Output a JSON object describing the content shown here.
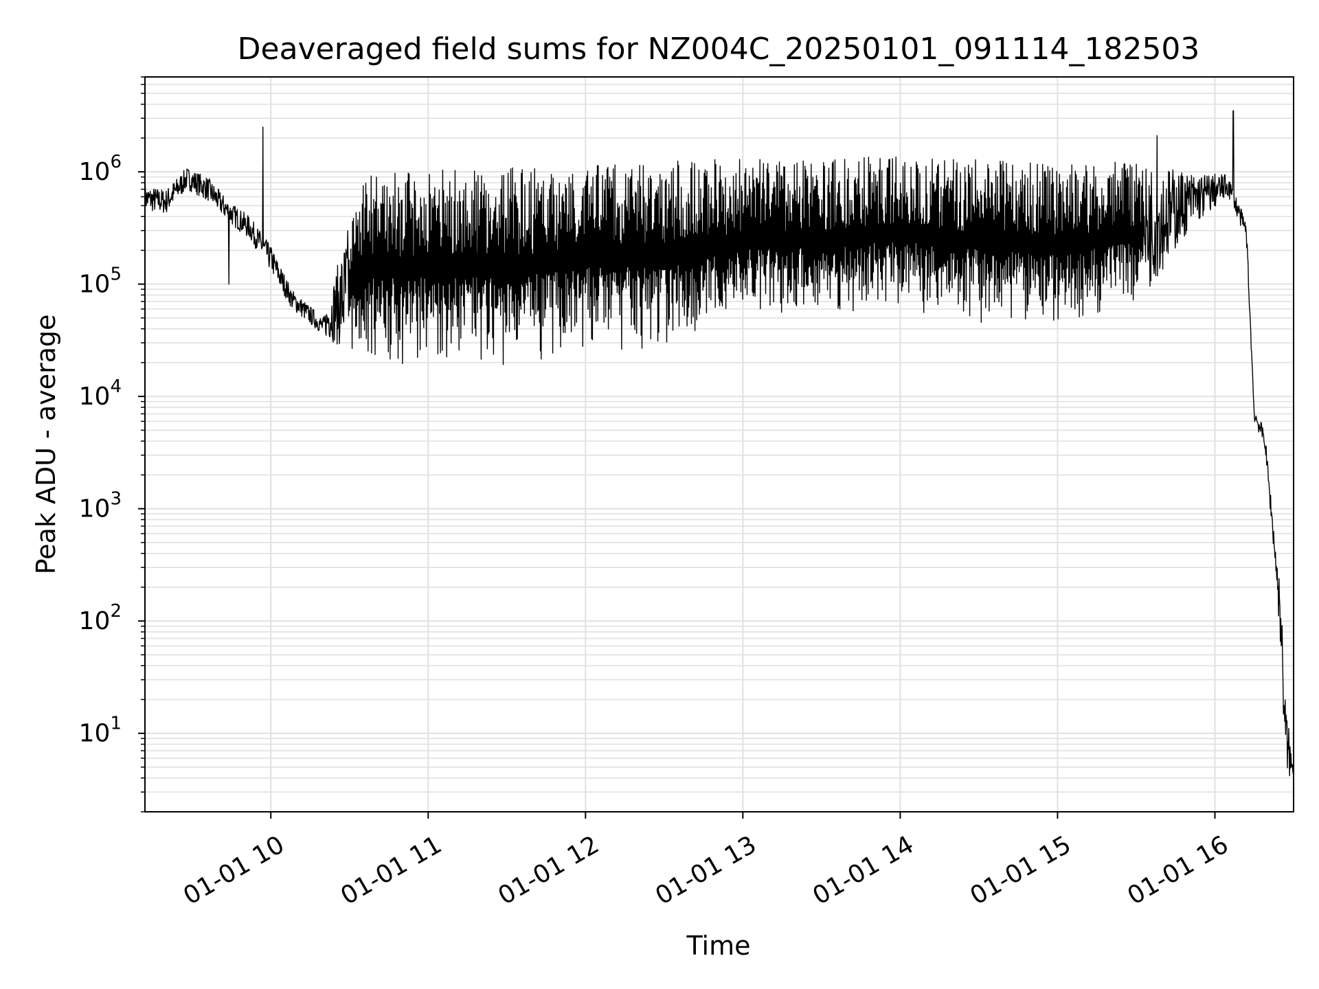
{
  "chart_data": {
    "type": "line",
    "title": "Deaveraged field sums for NZ004C_20250101_091114_182503",
    "xlabel": "Time",
    "ylabel": "Peak ADU - average",
    "y_scale": "log",
    "ylim": [
      2,
      7000000
    ],
    "xlim": [
      "2025-01-01 09:12",
      "2025-01-01 16:30"
    ],
    "x_ticks": [
      {
        "value": "2025-01-01 10:00",
        "label": "01-01 10"
      },
      {
        "value": "2025-01-01 11:00",
        "label": "01-01 11"
      },
      {
        "value": "2025-01-01 12:00",
        "label": "01-01 12"
      },
      {
        "value": "2025-01-01 13:00",
        "label": "01-01 13"
      },
      {
        "value": "2025-01-01 14:00",
        "label": "01-01 14"
      },
      {
        "value": "2025-01-01 15:00",
        "label": "01-01 15"
      },
      {
        "value": "2025-01-01 16:00",
        "label": "01-01 16"
      }
    ],
    "y_ticks": [
      {
        "value": 10,
        "base": "10",
        "exp": "1"
      },
      {
        "value": 100,
        "base": "10",
        "exp": "2"
      },
      {
        "value": 1000,
        "base": "10",
        "exp": "3"
      },
      {
        "value": 10000,
        "base": "10",
        "exp": "4"
      },
      {
        "value": 100000,
        "base": "10",
        "exp": "5"
      },
      {
        "value": 1000000,
        "base": "10",
        "exp": "6"
      }
    ],
    "grid": true,
    "line_color": "#000000",
    "grid_color": "#e0e0e0",
    "series": [
      {
        "name": "",
        "profile": [
          {
            "x": "2025-01-01 09:12",
            "low": 450000,
            "high": 750000
          },
          {
            "x": "2025-01-01 09:20",
            "low": 420000,
            "high": 700000
          },
          {
            "x": "2025-01-01 09:28",
            "low": 700000,
            "high": 1100000
          },
          {
            "x": "2025-01-01 09:36",
            "low": 550000,
            "high": 900000
          },
          {
            "x": "2025-01-01 09:44",
            "low": 350000,
            "high": 550000
          },
          {
            "x": "2025-01-01 09:52",
            "low": 250000,
            "high": 400000
          },
          {
            "x": "2025-01-01 10:00",
            "low": 130000,
            "high": 220000
          },
          {
            "x": "2025-01-01 10:08",
            "low": 60000,
            "high": 90000
          },
          {
            "x": "2025-01-01 10:20",
            "low": 35000,
            "high": 50000
          },
          {
            "x": "2025-01-01 10:35",
            "low": 20000,
            "high": 1000000
          },
          {
            "x": "2025-01-01 10:50",
            "low": 19000,
            "high": 1000000
          },
          {
            "x": "2025-01-01 11:00",
            "low": 20000,
            "high": 1100000
          },
          {
            "x": "2025-01-01 11:30",
            "low": 18000,
            "high": 1100000
          },
          {
            "x": "2025-01-01 12:00",
            "low": 25000,
            "high": 1200000
          },
          {
            "x": "2025-01-01 12:30",
            "low": 25000,
            "high": 1300000
          },
          {
            "x": "2025-01-01 13:00",
            "low": 45000,
            "high": 1300000
          },
          {
            "x": "2025-01-01 13:30",
            "low": 50000,
            "high": 1300000
          },
          {
            "x": "2025-01-01 14:00",
            "low": 60000,
            "high": 1400000
          },
          {
            "x": "2025-01-01 14:30",
            "low": 45000,
            "high": 1300000
          },
          {
            "x": "2025-01-01 15:00",
            "low": 40000,
            "high": 1200000
          },
          {
            "x": "2025-01-01 15:30",
            "low": 60000,
            "high": 1300000
          },
          {
            "x": "2025-01-01 15:50",
            "low": 300000,
            "high": 1000000
          },
          {
            "x": "2025-01-01 16:05",
            "low": 600000,
            "high": 950000
          },
          {
            "x": "2025-01-01 16:12",
            "low": 250000,
            "high": 350000
          },
          {
            "x": "2025-01-01 16:15",
            "low": 6000,
            "high": 8000
          },
          {
            "x": "2025-01-01 16:19",
            "low": 3500,
            "high": 5000
          },
          {
            "x": "2025-01-01 16:23",
            "low": 300,
            "high": 500
          },
          {
            "x": "2025-01-01 16:25",
            "low": 60,
            "high": 200
          },
          {
            "x": "2025-01-01 16:27",
            "low": 4,
            "high": 20
          },
          {
            "x": "2025-01-01 16:30",
            "low": 4,
            "high": 4.5
          }
        ],
        "spikes": [
          {
            "x": "2025-01-01 09:57",
            "y": 2500000
          },
          {
            "x": "2025-01-01 09:44",
            "y": 100000
          },
          {
            "x": "2025-01-01 15:38",
            "y": 2100000
          },
          {
            "x": "2025-01-01 16:07",
            "y": 3500000
          }
        ]
      }
    ]
  }
}
